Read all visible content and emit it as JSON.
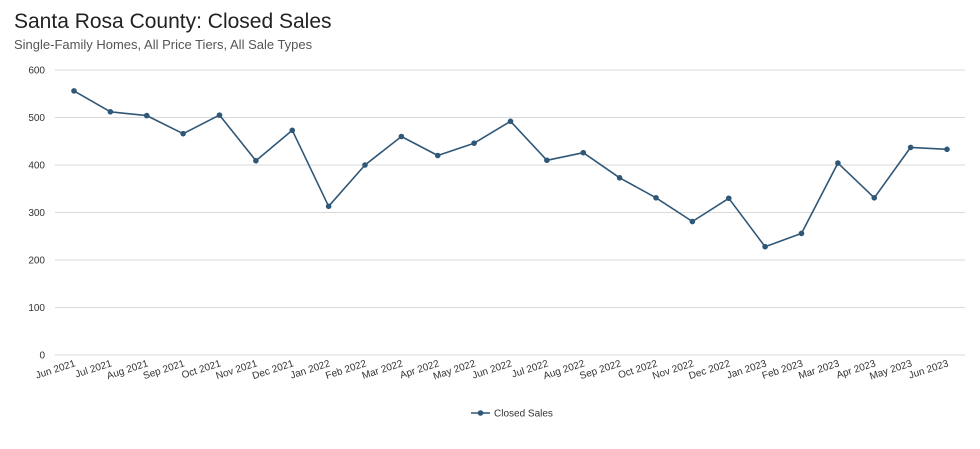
{
  "title": "Santa Rosa County: Closed Sales",
  "subtitle": "Single-Family Homes, All Price Tiers, All Sale Types",
  "colors": {
    "line": "#2f5777",
    "grid": "#d9d9d9",
    "text": "#333333"
  },
  "chart_data": {
    "type": "line",
    "title": "Santa Rosa County: Closed Sales",
    "subtitle": "Single-Family Homes, All Price Tiers, All Sale Types",
    "xlabel": "",
    "ylabel": "",
    "ylim": [
      0,
      600
    ],
    "yticks": [
      0,
      100,
      200,
      300,
      400,
      500,
      600
    ],
    "grid": true,
    "legend_position": "bottom",
    "categories": [
      "Jun 2021",
      "Jul 2021",
      "Aug 2021",
      "Sep 2021",
      "Oct 2021",
      "Nov 2021",
      "Dec 2021",
      "Jan 2022",
      "Feb 2022",
      "Mar 2022",
      "Apr 2022",
      "May 2022",
      "Jun 2022",
      "Jul 2022",
      "Aug 2022",
      "Sep 2022",
      "Oct 2022",
      "Nov 2022",
      "Dec 2022",
      "Jan 2023",
      "Feb 2023",
      "Mar 2023",
      "Apr 2023",
      "May 2023",
      "Jun 2023"
    ],
    "series": [
      {
        "name": "Closed Sales",
        "values": [
          556,
          512,
          504,
          466,
          505,
          409,
          473,
          313,
          400,
          460,
          420,
          446,
          492,
          410,
          426,
          373,
          331,
          281,
          330,
          228,
          256,
          404,
          331,
          437,
          433
        ]
      }
    ]
  }
}
